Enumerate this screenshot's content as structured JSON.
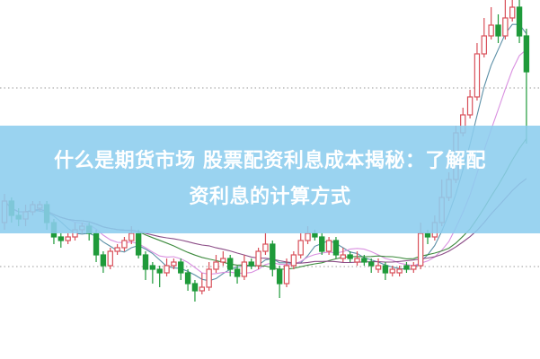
{
  "title": {
    "line1": "什么是期货市场 股票配资利息成本揭秘：了解配",
    "line2": "资利息的计算方式"
  },
  "chart_data": {
    "type": "candlestick",
    "ylim": [
      0,
      100
    ],
    "grid": "dotted horizontal",
    "colors": {
      "up": "#d9505a",
      "down": "#1f9a3a",
      "ma": [
        "#5b8fa6",
        "#d990e0",
        "#3d8a3d",
        "#8b4c86"
      ]
    },
    "moving_averages": [
      5,
      10,
      20,
      30
    ],
    "candles_ohlc": [
      [
        38,
        46,
        36,
        44
      ],
      [
        44,
        45,
        38,
        40
      ],
      [
        40,
        42,
        37,
        39
      ],
      [
        39,
        43,
        37,
        41
      ],
      [
        41,
        44,
        40,
        43
      ],
      [
        42,
        44,
        41,
        43
      ],
      [
        43,
        44,
        36,
        38
      ],
      [
        38,
        39,
        32,
        34
      ],
      [
        34,
        35,
        31,
        33
      ],
      [
        33,
        35,
        32,
        34
      ],
      [
        34,
        38,
        33,
        36
      ],
      [
        36,
        38,
        35,
        37
      ],
      [
        37,
        38,
        33,
        35
      ],
      [
        35,
        36,
        27,
        29
      ],
      [
        29,
        30,
        24,
        26
      ],
      [
        26,
        31,
        25,
        30
      ],
      [
        30,
        32,
        29,
        31
      ],
      [
        31,
        34,
        30,
        33
      ],
      [
        33,
        37,
        32,
        35
      ],
      [
        35,
        36,
        28,
        29
      ],
      [
        29,
        30,
        22,
        25
      ],
      [
        26,
        27,
        21,
        25
      ],
      [
        25,
        26,
        20,
        24
      ],
      [
        24,
        28,
        23,
        26
      ],
      [
        26,
        28,
        25,
        27
      ],
      [
        27,
        28,
        22,
        24
      ],
      [
        24,
        25,
        19,
        21
      ],
      [
        21,
        22,
        16,
        19
      ],
      [
        19,
        24,
        18,
        20
      ],
      [
        20,
        27,
        19,
        25
      ],
      [
        25,
        29,
        24,
        27
      ],
      [
        27,
        30,
        26,
        28
      ],
      [
        28,
        29,
        23,
        25
      ],
      [
        25,
        26,
        21,
        23
      ],
      [
        23,
        29,
        22,
        27
      ],
      [
        27,
        28,
        25,
        26
      ],
      [
        26,
        31,
        25,
        30
      ],
      [
        30,
        35,
        29,
        32
      ],
      [
        32,
        33,
        23,
        25
      ],
      [
        25,
        26,
        17,
        21
      ],
      [
        21,
        28,
        20,
        26
      ],
      [
        26,
        30,
        25,
        29
      ],
      [
        29,
        35,
        28,
        33
      ],
      [
        33,
        37,
        32,
        35
      ],
      [
        35,
        36,
        33,
        34
      ],
      [
        34,
        35,
        29,
        30
      ],
      [
        30,
        34,
        29,
        33
      ],
      [
        33,
        34,
        28,
        29
      ],
      [
        28,
        31,
        27,
        29
      ],
      [
        29,
        30,
        27,
        28
      ],
      [
        27,
        30,
        26,
        28
      ],
      [
        28,
        29,
        26,
        27
      ],
      [
        27,
        28,
        24,
        26
      ],
      [
        25,
        28,
        24,
        26
      ],
      [
        26,
        27,
        22,
        24
      ],
      [
        24,
        26,
        23,
        25
      ],
      [
        24,
        26,
        23,
        25
      ],
      [
        26,
        27,
        24,
        25
      ],
      [
        25,
        27,
        24,
        26
      ],
      [
        26,
        38,
        25,
        35
      ],
      [
        35,
        36,
        32,
        34
      ],
      [
        34,
        40,
        33,
        38
      ],
      [
        38,
        50,
        37,
        45
      ],
      [
        45,
        52,
        44,
        50
      ],
      [
        50,
        65,
        49,
        63
      ],
      [
        63,
        70,
        62,
        68
      ],
      [
        68,
        75,
        67,
        73
      ],
      [
        73,
        88,
        72,
        85
      ],
      [
        85,
        95,
        84,
        90
      ],
      [
        90,
        98,
        89,
        93
      ],
      [
        93,
        96,
        88,
        90
      ],
      [
        90,
        100,
        89,
        95
      ],
      [
        95,
        102,
        94,
        98
      ],
      [
        98,
        100,
        88,
        90
      ],
      [
        90,
        92,
        60,
        80
      ]
    ]
  }
}
